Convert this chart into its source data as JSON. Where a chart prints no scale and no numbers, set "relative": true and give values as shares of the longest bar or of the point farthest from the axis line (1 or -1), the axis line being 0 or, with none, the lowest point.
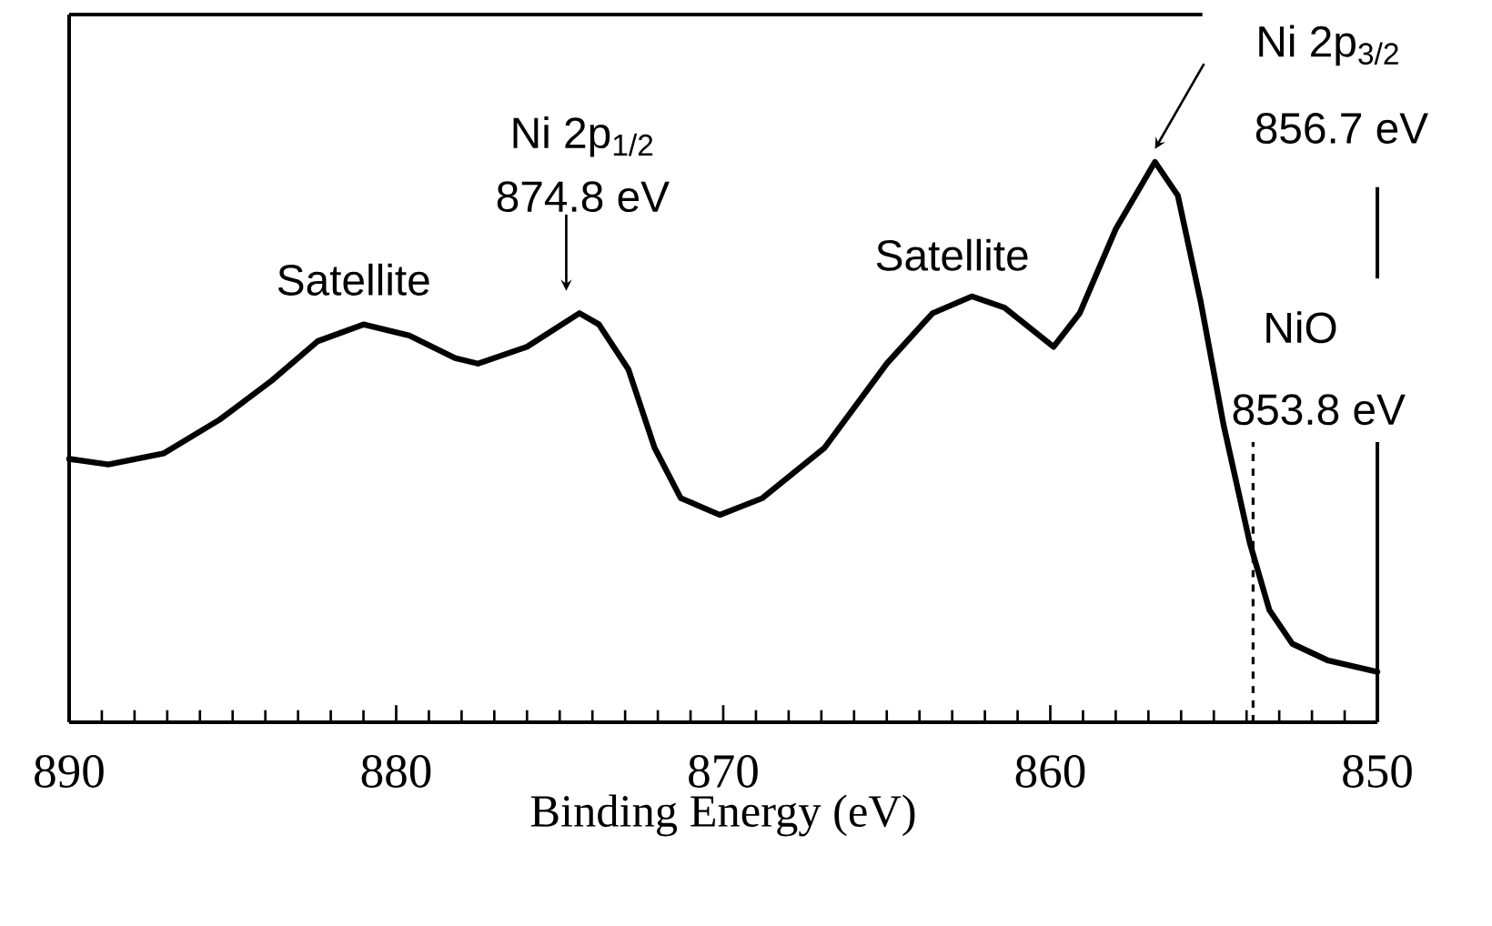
{
  "chart_data": {
    "type": "line",
    "relative": true,
    "xlabel": "Binding Energy (eV)",
    "xlim": [
      890,
      850
    ],
    "xticks": [
      890,
      880,
      870,
      860,
      850
    ],
    "x": [
      890,
      888.8,
      887.1,
      885.4,
      883.8,
      882.4,
      881.0,
      879.6,
      878.2,
      877.5,
      876.0,
      874.4,
      873.8,
      872.9,
      872.1,
      871.3,
      870.1,
      868.8,
      866.9,
      865.0,
      863.6,
      862.4,
      861.4,
      859.9,
      859.1,
      858.0,
      856.8,
      856.1,
      855.4,
      854.7,
      853.9,
      853.3,
      852.6,
      851.5,
      850.0
    ],
    "series": [
      {
        "color": "#000000",
        "values": [
          0.47,
          0.46,
          0.48,
          0.54,
          0.61,
          0.68,
          0.71,
          0.69,
          0.65,
          0.64,
          0.67,
          0.73,
          0.71,
          0.63,
          0.49,
          0.4,
          0.37,
          0.4,
          0.49,
          0.64,
          0.73,
          0.76,
          0.74,
          0.67,
          0.73,
          0.88,
          1,
          0.94,
          0.75,
          0.53,
          0.32,
          0.2,
          0.14,
          0.11,
          0.09
        ]
      }
    ],
    "ref_lines": [
      {
        "axis": "x",
        "value": 853.8,
        "line_style": "dashed",
        "color": "#000000"
      }
    ],
    "annotations": [
      {
        "text": "Satellite",
        "x": 881.0,
        "y": 0.71
      },
      "Ni 2p$_{1/2}$",
      {
        "text": "874.8 eV",
        "x": 874.8,
        "y": 0.73
      },
      {
        "text": "Satellite",
        "x": 862.5,
        "y": 0.76
      },
      "Ni 2p$_{3/2}$",
      {
        "text": "856.7 eV",
        "x": 856.7,
        "y": 1
      },
      "NiO",
      {
        "text": "853.8 eV",
        "x": 853.8,
        "y": 0.3
      }
    ]
  }
}
